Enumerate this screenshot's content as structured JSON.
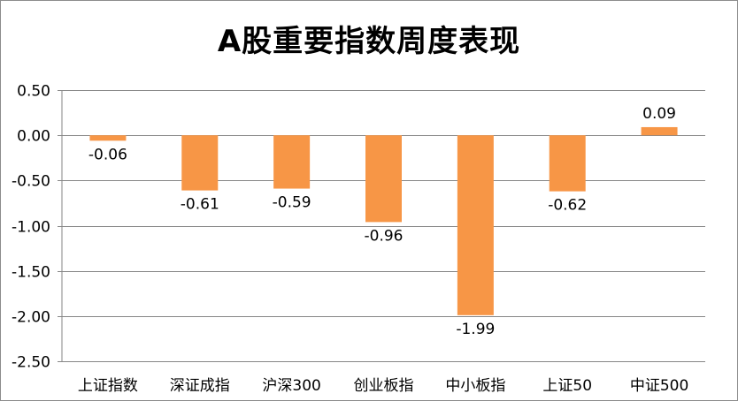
{
  "chart_data": {
    "type": "bar",
    "title": "A股重要指数周度表现",
    "xlabel": "",
    "ylabel": "",
    "categories": [
      "上证指数",
      "深证成指",
      "沪深300",
      "创业板指",
      "中小板指",
      "上证50",
      "中证500"
    ],
    "values": [
      -0.06,
      -0.61,
      -0.59,
      -0.96,
      -1.99,
      -0.62,
      0.09
    ],
    "data_labels": [
      "-0.06",
      "-0.61",
      "-0.59",
      "-0.96",
      "-1.99",
      "-0.62",
      "0.09"
    ],
    "ylim": [
      -2.5,
      0.5
    ],
    "yticks": [
      0.5,
      0.0,
      -0.5,
      -1.0,
      -1.5,
      -2.0,
      -2.5
    ],
    "ytick_labels": [
      "0.50",
      "0.00",
      "-0.50",
      "-1.00",
      "-1.50",
      "-2.00",
      "-2.50"
    ],
    "grid": true,
    "legend": "none",
    "bar_color": "#F79646",
    "grid_color": "#868686"
  }
}
